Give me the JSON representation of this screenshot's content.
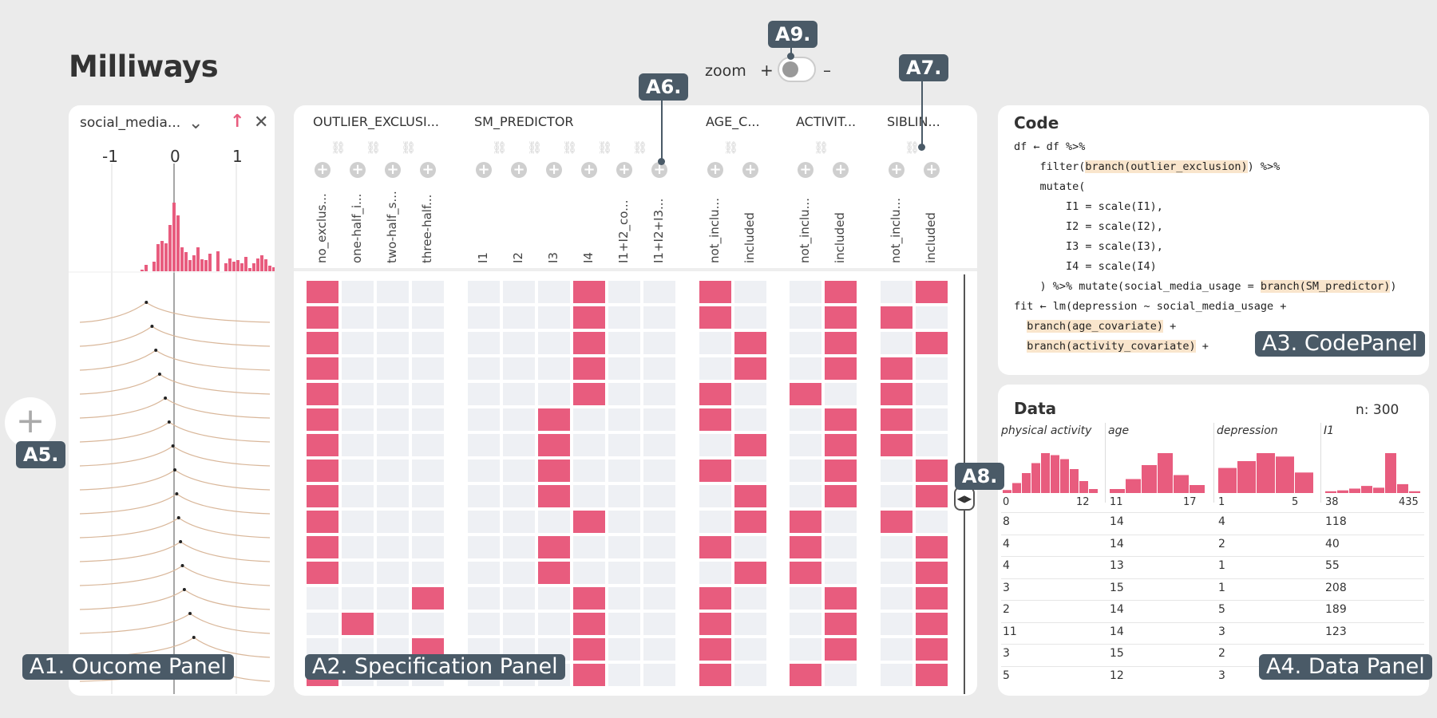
{
  "app": {
    "title": "Milliways"
  },
  "zoom": {
    "label": "zoom",
    "plus": "+",
    "minus": "–"
  },
  "callouts": {
    "a1": "A1. Oucome Panel",
    "a2": "A2. Specification Panel",
    "a3": "A3. CodePanel",
    "a4": "A4. Data Panel",
    "a5": "A5.",
    "a6": "A6.",
    "a7": "A7.",
    "a8": "A8.",
    "a9": "A9."
  },
  "outcome": {
    "variable": "social_media...",
    "ticks": [
      "-1",
      "0",
      "1"
    ],
    "histogram": [
      2,
      8,
      0,
      12,
      34,
      38,
      35,
      58,
      86,
      70,
      30,
      24,
      14,
      20,
      30,
      15,
      14,
      22,
      0,
      25,
      0,
      10,
      16,
      12,
      14,
      10,
      18,
      4,
      10,
      16,
      20,
      15,
      7,
      5,
      4
    ],
    "cdf_peaks": [
      0.35,
      0.38,
      0.4,
      0.42,
      0.45,
      0.47,
      0.49,
      0.5,
      0.51,
      0.52,
      0.53,
      0.54,
      0.55,
      0.58,
      0.6,
      0.62
    ],
    "colors": {
      "hist": "#e85c7e",
      "curve": "#d9b79a"
    }
  },
  "spec": {
    "groups": [
      {
        "name": "OUTLIER_EXCLUSI...",
        "options": [
          "no_exclus...",
          "one-half_i...",
          "two-half_s...",
          "three-half..."
        ]
      },
      {
        "name": "SM_PREDICTOR",
        "options": [
          "I1",
          "I2",
          "I3",
          "I4",
          "I1+I2_co...",
          "I1+I2+I3..."
        ]
      },
      {
        "name": "AGE_C...",
        "options": [
          "not_inclu...",
          "included"
        ]
      },
      {
        "name": "ACTIVIT...",
        "options": [
          "not_inclu...",
          "included"
        ]
      },
      {
        "name": "SIBLIN...",
        "options": [
          "not_inclu...",
          "included"
        ]
      }
    ],
    "rows": [
      [
        0,
        3,
        0,
        1,
        1
      ],
      [
        0,
        3,
        0,
        1,
        0
      ],
      [
        0,
        3,
        1,
        1,
        1
      ],
      [
        0,
        3,
        1,
        1,
        0
      ],
      [
        0,
        3,
        0,
        0,
        0
      ],
      [
        0,
        2,
        0,
        1,
        0
      ],
      [
        0,
        2,
        1,
        1,
        0
      ],
      [
        0,
        2,
        0,
        1,
        1
      ],
      [
        0,
        2,
        1,
        1,
        1
      ],
      [
        0,
        3,
        1,
        0,
        0
      ],
      [
        0,
        2,
        0,
        0,
        1
      ],
      [
        0,
        2,
        1,
        0,
        1
      ],
      [
        3,
        3,
        0,
        1,
        1
      ],
      [
        1,
        3,
        0,
        1,
        1
      ],
      [
        3,
        3,
        0,
        1,
        1
      ],
      [
        0,
        3,
        0,
        0,
        1
      ]
    ],
    "colors": {
      "on": "#e85c7e",
      "off": "#eef0f4"
    }
  },
  "code": {
    "title": "Code",
    "lines": [
      [
        {
          "t": "df ← df %>%"
        }
      ],
      [
        {
          "t": "    filter("
        },
        {
          "t": "branch(outlier_exclusion)",
          "h": true
        },
        {
          "t": ") %>%"
        }
      ],
      [
        {
          "t": "    mutate("
        }
      ],
      [
        {
          "t": "        I1 = scale(I1),"
        }
      ],
      [
        {
          "t": "        I2 = scale(I2),"
        }
      ],
      [
        {
          "t": "        I3 = scale(I3),"
        }
      ],
      [
        {
          "t": "        I4 = scale(I4)"
        }
      ],
      [
        {
          "t": "    ) %>% mutate(social_media_usage = "
        },
        {
          "t": "branch(SM_predictor)",
          "h": true
        },
        {
          "t": ")"
        }
      ],
      [
        {
          "t": "fit ← lm(depression ~ social_media_usage +"
        }
      ],
      [
        {
          "t": "  "
        },
        {
          "t": "branch(age_covariate)",
          "h": true
        },
        {
          "t": " +"
        }
      ],
      [
        {
          "t": "  "
        },
        {
          "t": "branch(activity_covariate)",
          "h": true
        },
        {
          "t": " +"
        }
      ]
    ]
  },
  "data": {
    "title": "Data",
    "n_label": "n: 300",
    "columns": [
      {
        "name": "physical activity",
        "min": "0",
        "max": "12",
        "hist": [
          3,
          10,
          20,
          30,
          40,
          38,
          34,
          24,
          12,
          4
        ]
      },
      {
        "name": "age",
        "min": "11",
        "max": "17",
        "hist": [
          4,
          14,
          28,
          40,
          18,
          8
        ]
      },
      {
        "name": "depression",
        "min": "1",
        "max": "5",
        "hist": [
          22,
          28,
          35,
          32,
          18
        ]
      },
      {
        "name": "I1",
        "min": "38",
        "max": "435",
        "hist": [
          2,
          3,
          5,
          8,
          6,
          45,
          10,
          2
        ]
      }
    ],
    "rows": [
      [
        "8",
        "14",
        "4",
        "118"
      ],
      [
        "4",
        "14",
        "2",
        "40"
      ],
      [
        "4",
        "13",
        "1",
        "55"
      ],
      [
        "3",
        "15",
        "1",
        "208"
      ],
      [
        "2",
        "14",
        "5",
        "189"
      ],
      [
        "11",
        "14",
        "3",
        "123"
      ],
      [
        "3",
        "15",
        "2",
        ""
      ],
      [
        "5",
        "12",
        "3",
        ""
      ]
    ]
  }
}
